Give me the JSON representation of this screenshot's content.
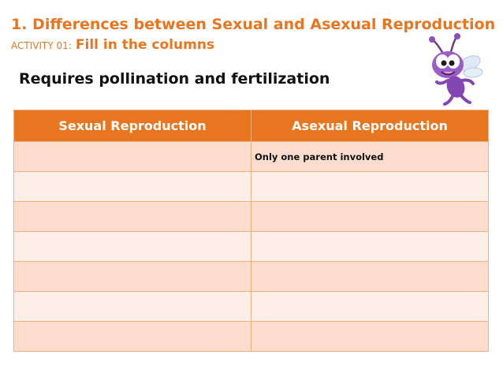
{
  "header": {
    "title": "1. Differences between Sexual and Asexual Reproduction",
    "activity_prefix": "ACTIVITY 01:",
    "activity_text": "Fill in the columns"
  },
  "draggable_statement": "Requires pollination and fertilization",
  "table": {
    "columns": [
      "Sexual Reproduction",
      "Asexual Reproduction"
    ],
    "rows": [
      [
        "",
        "Only one parent involved"
      ],
      [
        "",
        ""
      ],
      [
        "",
        ""
      ],
      [
        "",
        ""
      ],
      [
        "",
        ""
      ],
      [
        "",
        ""
      ],
      [
        "",
        ""
      ]
    ]
  },
  "colors": {
    "accent": "#e8751f",
    "row_dark": "#fbdccd",
    "row_light": "#fdefe8"
  },
  "icons": {
    "mascot": "purple-bug-mascot-icon"
  }
}
